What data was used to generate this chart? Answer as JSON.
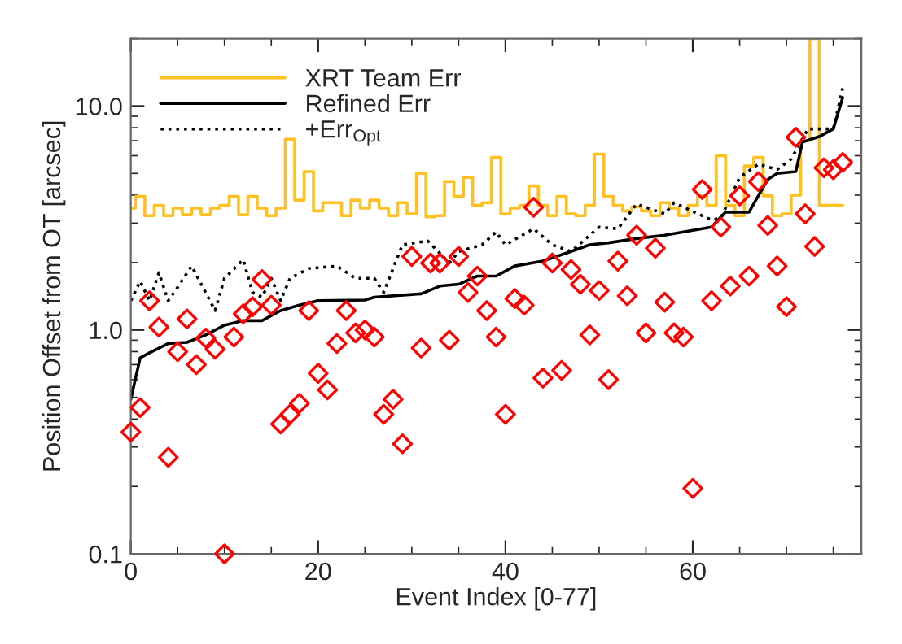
{
  "chart_data": {
    "type": "line",
    "xlabel": "Event Index [0-77]",
    "ylabel": "Position Offset from OT [arcsec]",
    "xlim": [
      0,
      78
    ],
    "xticks": [
      0,
      20,
      40,
      60
    ],
    "ylim": [
      0.1,
      20
    ],
    "yticks": [
      {
        "value": 0.1,
        "label": "0.1"
      },
      {
        "value": 1,
        "label": "1.0"
      },
      {
        "value": 10,
        "label": "10.0"
      }
    ],
    "log": "y",
    "grid": false,
    "legend": "top left",
    "series": [
      {
        "name": "XRT Team Err",
        "type": "step",
        "color": "#ffc020",
        "line_style": "solid",
        "marker": "none",
        "x": [
          0,
          1,
          2,
          3,
          4,
          5,
          6,
          7,
          8,
          9,
          10,
          11,
          12,
          13,
          14,
          15,
          16,
          17,
          18,
          19,
          20,
          21,
          22,
          23,
          24,
          25,
          26,
          27,
          28,
          29,
          30,
          31,
          32,
          33,
          34,
          35,
          36,
          37,
          38,
          39,
          40,
          41,
          42,
          43,
          44,
          45,
          46,
          47,
          48,
          49,
          50,
          51,
          52,
          53,
          54,
          55,
          56,
          57,
          58,
          59,
          60,
          61,
          62,
          63,
          64,
          65,
          66,
          67,
          68,
          69,
          70,
          71,
          72,
          73,
          74,
          75,
          76
        ],
        "values": [
          3.5,
          3.95,
          3.24,
          3.6,
          3.24,
          3.5,
          3.27,
          3.5,
          3.27,
          3.5,
          3.6,
          3.95,
          3.27,
          3.95,
          3.5,
          3.24,
          3.5,
          7.1,
          3.8,
          5.1,
          3.4,
          3.7,
          3.7,
          3.24,
          3.8,
          3.5,
          3.8,
          3.5,
          3.24,
          3.7,
          3.3,
          5.0,
          3.2,
          3.24,
          4.6,
          3.95,
          4.8,
          3.6,
          3.7,
          5.9,
          3.3,
          3.5,
          3.6,
          4.4,
          3.6,
          3.24,
          3.95,
          3.3,
          3.24,
          3.6,
          6.1,
          3.95,
          3.6,
          3.4,
          3.55,
          3.4,
          3.24,
          3.7,
          3.5,
          3.24,
          3.6,
          4.0,
          3.6,
          6.0,
          3.6,
          3.24,
          5.4,
          5.9,
          3.97,
          3.24,
          3.3,
          4.0,
          7.0,
          20,
          3.6,
          3.6,
          3.6
        ]
      },
      {
        "name": "Refined Err",
        "color": "#000000",
        "line_style": "solid",
        "marker": "none",
        "x": [
          0,
          1,
          2,
          4,
          6,
          8,
          10,
          12,
          14,
          16,
          18,
          20,
          25,
          26,
          31,
          33,
          35,
          37,
          39,
          41,
          44,
          47,
          49,
          51,
          54,
          57,
          62,
          63.5,
          66,
          68,
          69,
          71,
          71.7,
          73.5,
          75,
          76
        ],
        "values": [
          0.49,
          0.75,
          0.79,
          0.87,
          0.88,
          0.95,
          1.05,
          1.1,
          1.1,
          1.22,
          1.29,
          1.35,
          1.36,
          1.4,
          1.45,
          1.57,
          1.6,
          1.74,
          1.74,
          1.93,
          2.03,
          2.24,
          2.4,
          2.45,
          2.56,
          2.65,
          2.88,
          3.36,
          3.36,
          4.7,
          5.0,
          5.1,
          6.9,
          7.3,
          7.9,
          10.9
        ]
      },
      {
        "name": "+Err$_{Opt}$",
        "color": "#000000",
        "line_style": "dotted",
        "marker": "none",
        "x": [
          0,
          1,
          2,
          3,
          4,
          5,
          6.5,
          9,
          10,
          12,
          13,
          14,
          15,
          16,
          17,
          19,
          22,
          24,
          26,
          27,
          29,
          31.7,
          34,
          35,
          37.5,
          39,
          40,
          43,
          45,
          47,
          50,
          52,
          54,
          57,
          58,
          62,
          63,
          65,
          67,
          69,
          70.5,
          72.3,
          75,
          76
        ],
        "values": [
          1.35,
          1.65,
          1.35,
          1.8,
          1.35,
          1.55,
          1.93,
          1.22,
          1.7,
          2.06,
          1.47,
          1.4,
          1.7,
          1.35,
          1.7,
          1.88,
          1.93,
          1.7,
          1.7,
          1.47,
          2.4,
          2.5,
          1.99,
          2.24,
          2.4,
          2.74,
          2.4,
          2.83,
          2.4,
          2.24,
          2.88,
          2.83,
          3.65,
          3.3,
          3.7,
          3.1,
          3.16,
          4.8,
          5.5,
          5.2,
          5.8,
          7.9,
          7.9,
          12
        ]
      },
      {
        "type": "scatter",
        "color": "#ff0000",
        "marker": "diamond",
        "x": [
          0,
          1,
          2,
          3,
          4,
          5,
          6,
          7,
          8,
          9,
          10,
          11,
          12,
          13,
          14,
          15,
          16,
          17,
          18,
          19,
          20,
          21,
          22,
          23,
          24,
          25,
          26,
          27,
          28,
          29,
          30,
          31,
          32,
          33,
          34,
          35,
          36,
          37,
          38,
          39,
          40,
          41,
          42,
          43,
          44,
          45,
          46,
          47,
          48,
          49,
          50,
          51,
          52,
          53,
          54,
          55,
          56,
          57,
          58,
          59,
          60,
          61,
          62,
          63,
          64,
          65,
          66,
          67,
          68,
          69,
          70,
          71,
          72,
          73,
          74,
          75,
          76
        ],
        "values": [
          0.35,
          0.45,
          1.35,
          1.03,
          0.27,
          0.8,
          1.12,
          0.7,
          0.92,
          0.82,
          0.1,
          0.93,
          1.18,
          1.27,
          1.68,
          1.29,
          0.38,
          0.42,
          0.47,
          1.22,
          0.64,
          0.54,
          0.87,
          1.22,
          0.97,
          1.0,
          0.93,
          0.42,
          0.49,
          0.31,
          2.13,
          0.83,
          1.99,
          1.99,
          0.9,
          2.13,
          1.47,
          1.74,
          1.22,
          0.93,
          0.42,
          1.38,
          1.29,
          3.53,
          0.61,
          1.99,
          0.66,
          1.86,
          1.6,
          0.95,
          1.5,
          0.6,
          2.03,
          1.42,
          2.65,
          0.97,
          2.32,
          1.33,
          0.97,
          0.93,
          0.196,
          4.24,
          1.35,
          2.88,
          1.57,
          3.97,
          1.74,
          4.6,
          2.93,
          1.93,
          1.27,
          7.25,
          3.3,
          2.36,
          5.3,
          5.2,
          5.6
        ]
      }
    ]
  }
}
